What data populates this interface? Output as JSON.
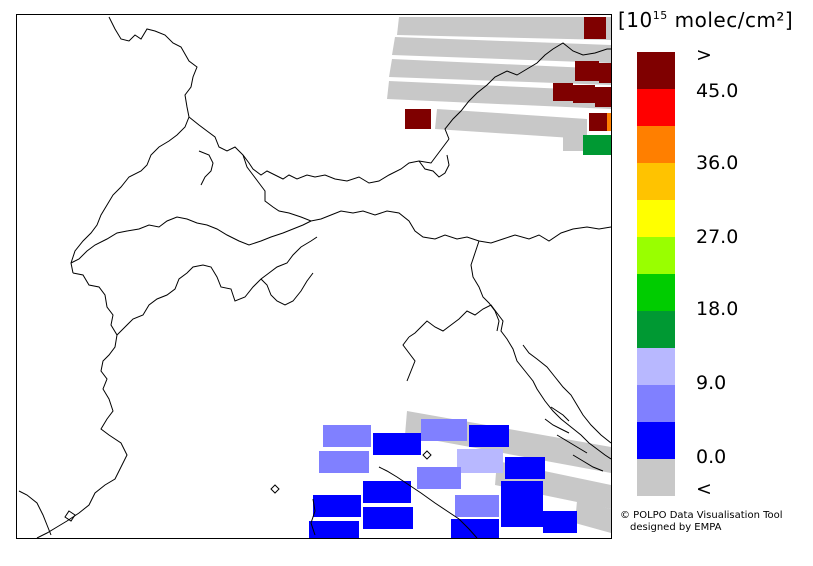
{
  "legend": {
    "unit_prefix": "[10",
    "unit_exp": "15",
    "unit_suffix": " molec/cm²]",
    "colors": [
      "#7f0000",
      "#ff0000",
      "#ff7f00",
      "#ffc300",
      "#ffff00",
      "#99ff00",
      "#00cc00",
      "#009933",
      "#b8b8ff",
      "#8080ff",
      "#0000ff",
      "#c8c8c8"
    ],
    "labels": [
      ">",
      "45.0",
      "36.0",
      "27.0",
      "18.0",
      "9.0",
      "0.0",
      "<"
    ]
  },
  "credits": {
    "line1": "© POLPO Data Visualisation Tool",
    "line2": "designed by EMPA"
  },
  "map": {
    "colors": {
      "grey": "#c8c8c8",
      "dark_red": "#7f0000",
      "red": "#ff0000",
      "orange": "#ff7f00",
      "green": "#009933",
      "blue": "#0000ff",
      "mid_blue": "#8080ff",
      "light_blue": "#b8b8ff"
    }
  }
}
